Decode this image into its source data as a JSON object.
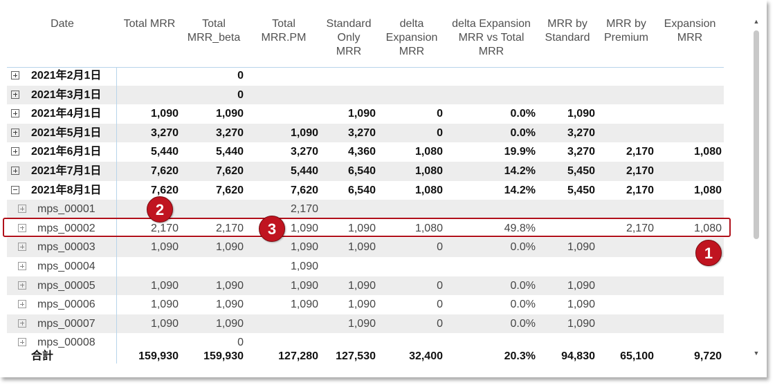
{
  "table": {
    "headers": [
      "Date",
      "Total MRR",
      "Total\nMRR_beta",
      "Total\nMRR.PM",
      "Standard\nOnly\nMRR",
      "delta\nExpansion\nMRR",
      "delta Expansion\nMRR vs Total\nMRR",
      "MRR by\nStandard",
      "MRR by\nPremium",
      "Expansion\nMRR"
    ],
    "rows": [
      {
        "label": "2021年2月1日",
        "level": 0,
        "expanded": false,
        "cells": [
          "",
          "0",
          "",
          "",
          "",
          "",
          "",
          "",
          ""
        ]
      },
      {
        "label": "2021年3月1日",
        "level": 0,
        "expanded": false,
        "cells": [
          "",
          "0",
          "",
          "",
          "",
          "",
          "",
          "",
          ""
        ]
      },
      {
        "label": "2021年4月1日",
        "level": 0,
        "expanded": false,
        "cells": [
          "1,090",
          "1,090",
          "",
          "1,090",
          "0",
          "0.0%",
          "1,090",
          "",
          ""
        ]
      },
      {
        "label": "2021年5月1日",
        "level": 0,
        "expanded": false,
        "cells": [
          "3,270",
          "3,270",
          "1,090",
          "3,270",
          "0",
          "0.0%",
          "3,270",
          "",
          ""
        ]
      },
      {
        "label": "2021年6月1日",
        "level": 0,
        "expanded": false,
        "cells": [
          "5,440",
          "5,440",
          "3,270",
          "4,360",
          "1,080",
          "19.9%",
          "3,270",
          "2,170",
          "1,080"
        ]
      },
      {
        "label": "2021年7月1日",
        "level": 0,
        "expanded": false,
        "cells": [
          "7,620",
          "7,620",
          "5,440",
          "6,540",
          "1,080",
          "14.2%",
          "5,450",
          "2,170",
          ""
        ]
      },
      {
        "label": "2021年8月1日",
        "level": 0,
        "expanded": true,
        "cells": [
          "7,620",
          "7,620",
          "7,620",
          "6,540",
          "1,080",
          "14.2%",
          "5,450",
          "2,170",
          "1,080"
        ]
      },
      {
        "label": "mps_00001",
        "level": 1,
        "expanded": false,
        "cells": [
          "",
          "",
          "2,170",
          "",
          "",
          "",
          "",
          "",
          ""
        ]
      },
      {
        "label": "mps_00002",
        "level": 1,
        "expanded": false,
        "cells": [
          "2,170",
          "2,170",
          "1,090",
          "1,090",
          "1,080",
          "49.8%",
          "",
          "2,170",
          "1,080"
        ]
      },
      {
        "label": "mps_00003",
        "level": 1,
        "expanded": false,
        "cells": [
          "1,090",
          "1,090",
          "1,090",
          "1,090",
          "0",
          "0.0%",
          "1,090",
          "",
          ""
        ]
      },
      {
        "label": "mps_00004",
        "level": 1,
        "expanded": false,
        "cells": [
          "",
          "",
          "1,090",
          "",
          "",
          "",
          "",
          "",
          ""
        ]
      },
      {
        "label": "mps_00005",
        "level": 1,
        "expanded": false,
        "cells": [
          "1,090",
          "1,090",
          "1,090",
          "1,090",
          "0",
          "0.0%",
          "1,090",
          "",
          ""
        ]
      },
      {
        "label": "mps_00006",
        "level": 1,
        "expanded": false,
        "cells": [
          "1,090",
          "1,090",
          "1,090",
          "1,090",
          "0",
          "0.0%",
          "1,090",
          "",
          ""
        ]
      },
      {
        "label": "mps_00007",
        "level": 1,
        "expanded": false,
        "cells": [
          "1,090",
          "1,090",
          "",
          "1,090",
          "0",
          "0.0%",
          "1,090",
          "",
          ""
        ]
      },
      {
        "label": "mps_00008",
        "level": 1,
        "expanded": false,
        "cells": [
          "",
          "0",
          "",
          "",
          "",
          "",
          "",
          "",
          ""
        ]
      }
    ],
    "total": {
      "label": "合計",
      "cells": [
        "159,930",
        "159,930",
        "127,280",
        "127,530",
        "32,400",
        "20.3%",
        "94,830",
        "65,100",
        "9,720"
      ]
    }
  },
  "annotations": {
    "highlighted_row": "mps_00002",
    "highlight_color": "#b0101a",
    "badges": [
      "1",
      "2",
      "3"
    ],
    "badge_color": "#c01420"
  },
  "scrollbar": {
    "up_icon": "chevron-up-icon",
    "down_icon": "chevron-down-icon"
  }
}
